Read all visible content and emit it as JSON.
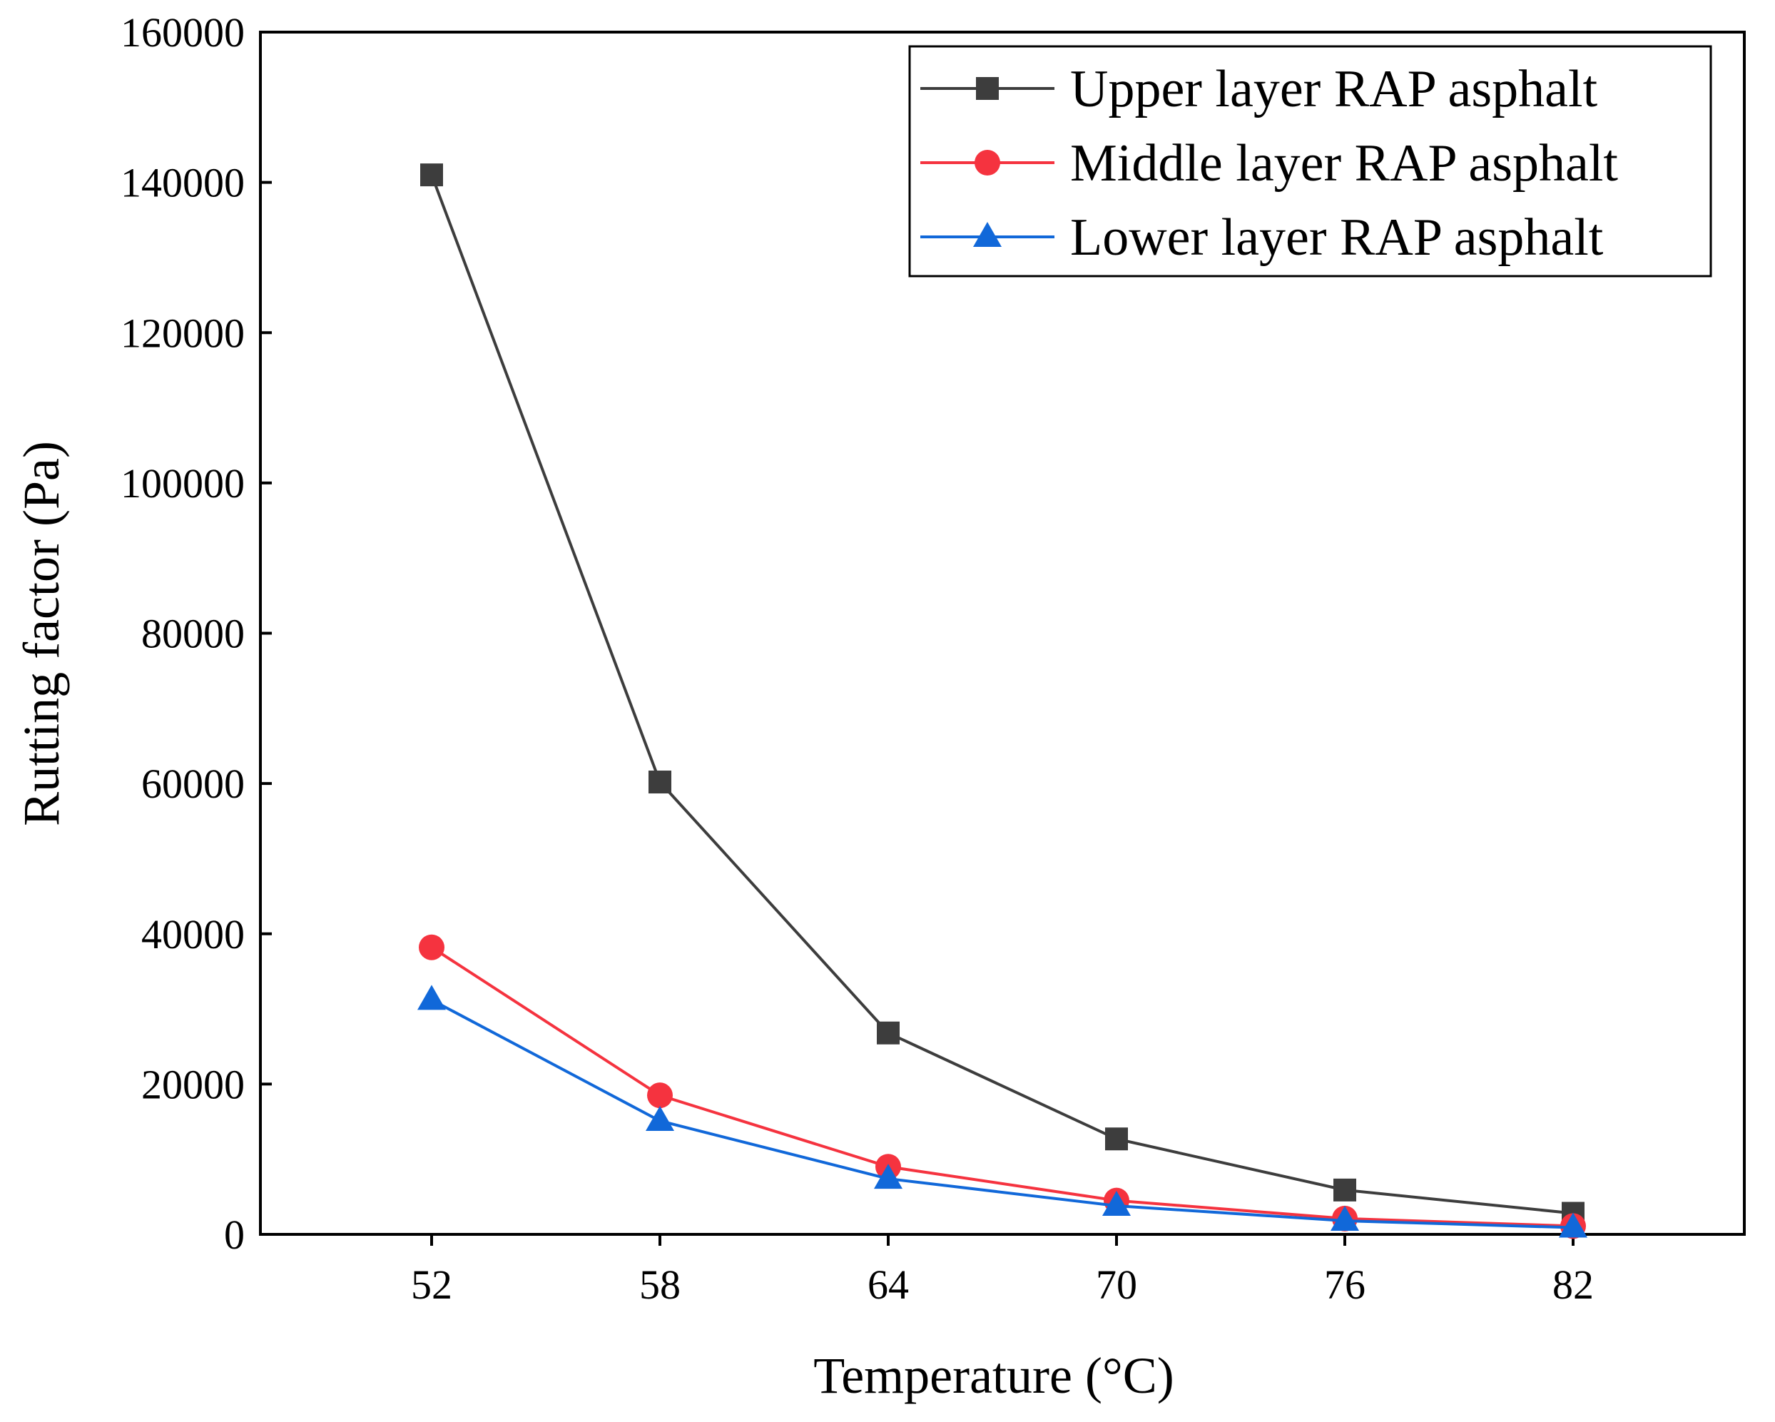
{
  "chart_data": {
    "type": "line",
    "title": "",
    "xlabel": "Temperature (°C)",
    "ylabel": "Rutting factor (Pa)",
    "categories": [
      "52",
      "58",
      "64",
      "70",
      "76",
      "82"
    ],
    "x": [
      52,
      58,
      64,
      70,
      76,
      82
    ],
    "xlim": [
      47.5,
      86.5
    ],
    "ylim": [
      0,
      160000
    ],
    "yticks": [
      0,
      20000,
      40000,
      60000,
      80000,
      100000,
      120000,
      140000,
      160000
    ],
    "ytick_labels": [
      "0",
      "20000",
      "40000",
      "60000",
      "80000",
      "100000",
      "120000",
      "140000",
      "160000"
    ],
    "grid": false,
    "legend_position": "top-right",
    "series": [
      {
        "name": "Upper layer RAP asphalt",
        "color": "#3d3d3d",
        "marker": "square",
        "values": [
          141000,
          60200,
          26800,
          12700,
          5900,
          2800
        ]
      },
      {
        "name": "Middle layer RAP asphalt",
        "color": "#f5333f",
        "marker": "circle",
        "values": [
          38200,
          18500,
          9000,
          4500,
          2100,
          1100
        ]
      },
      {
        "name": "Lower layer RAP asphalt",
        "color": "#1168d9",
        "marker": "triangle",
        "values": [
          31200,
          15100,
          7400,
          3800,
          1800,
          900
        ]
      }
    ]
  }
}
